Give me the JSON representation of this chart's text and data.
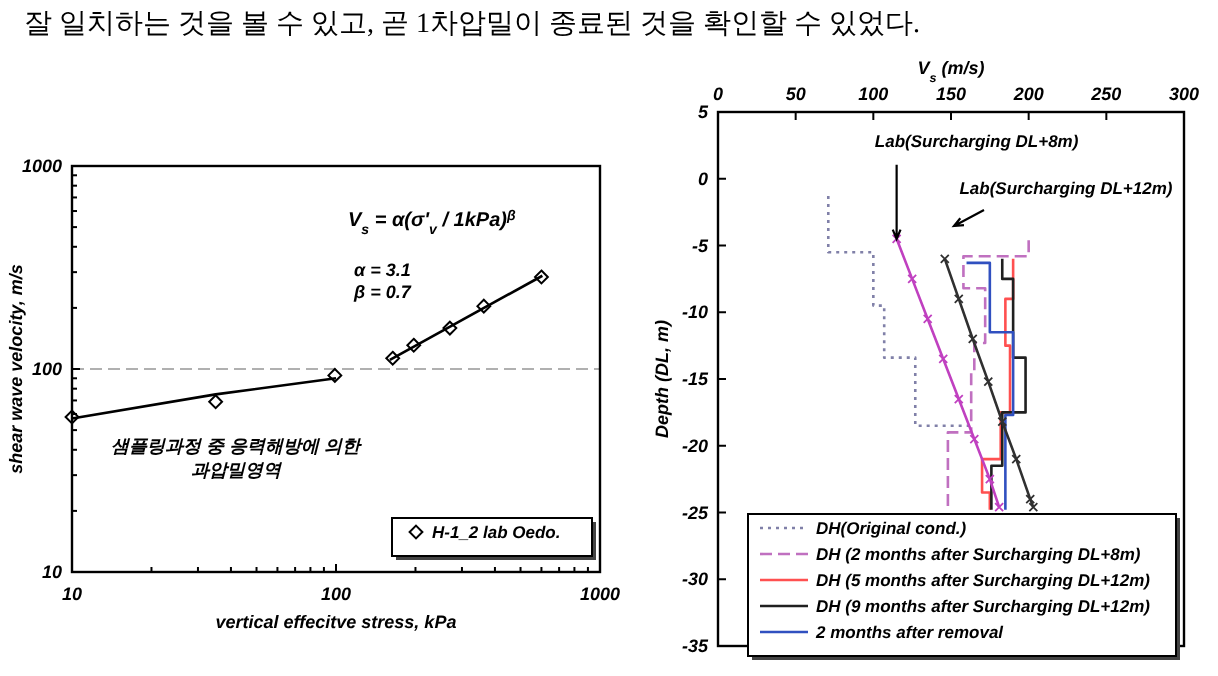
{
  "chart_data": [
    {
      "type": "scatter",
      "log": "xy",
      "xlabel": "vertical effecitve stress, kPa",
      "ylabel": "shear wave velocity, m/s",
      "xlim": [
        10,
        1000
      ],
      "ylim": [
        10,
        1000
      ],
      "xticks": [
        10,
        100,
        1000
      ],
      "yticks": [
        10,
        100,
        1000
      ],
      "marker": "diamond",
      "legend": "bottom right",
      "series": [
        {
          "name": "H-1_2 lab Oedo.",
          "color": "#000000",
          "x": [
            10,
            35,
            99,
            164,
            197,
            270,
            363,
            600
          ],
          "values": [
            58,
            69,
            93,
            113,
            131,
            159,
            204,
            284
          ]
        },
        {
          "type": "line",
          "marker": "none",
          "color": "#000000",
          "x": [
            10,
            35,
            100
          ],
          "values": [
            57,
            75,
            90
          ]
        },
        {
          "type": "line",
          "marker": "none",
          "color": "#000000",
          "x": [
            160,
            605
          ],
          "values": [
            111,
            288
          ]
        }
      ],
      "ref_lines": [
        {
          "axis": "y",
          "value": 100,
          "color": "#b0b0b0",
          "line_style": "dashed"
        }
      ],
      "annotations": [
        "잘 일치하는 것을 볼 수 있고, 곧 1차압밀이 종료된 것을 확인할 수 있었다.",
        "V$_{s}$ = α(σ'$_{v}$ / 1kPa)$^{β}$",
        "α = 3.1",
        "β = 0.7",
        "샘플링과정 중 응력해방에 의한\n과압밀영역"
      ]
    },
    {
      "type": "line",
      "xlabel": "V$_{s}$ (m/s)",
      "ylabel": "Depth (DL, m)",
      "xlim": [
        0,
        300
      ],
      "ylim": [
        -35,
        5
      ],
      "xticks": [
        0,
        50,
        100,
        150,
        200,
        250,
        300
      ],
      "yticks": [
        5,
        0,
        -5,
        -10,
        -15,
        -20,
        -25,
        -30,
        -35
      ],
      "legend": "bottom right",
      "series": [
        {
          "name": "DH(Original cond.)",
          "color": "#8080a8",
          "line_style": "dotted",
          "x": [
            71,
            71,
            100,
            100,
            107,
            107,
            127,
            127,
            163
          ],
          "values": [
            -1.3,
            -5.5,
            -5.5,
            -9.5,
            -9.5,
            -13.4,
            -13.4,
            -18.5,
            -18.5
          ]
        },
        {
          "name": "DH (2 months after Surcharging DL+8m)",
          "color": "#c070c0",
          "line_style": "dashed",
          "x": [
            200,
            200,
            158,
            158,
            172,
            172,
            165,
            165,
            163,
            163,
            148,
            148
          ],
          "values": [
            -4.6,
            -5.8,
            -5.8,
            -8.2,
            -8.2,
            -12.3,
            -12.3,
            -14.4,
            -14.4,
            -19,
            -19,
            -24.8
          ]
        },
        {
          "name": "DH (5 months after Surcharging DL+12m)",
          "color": "#ff5050",
          "line_style": "solid",
          "x": [
            190,
            190,
            185,
            185,
            188,
            188,
            182,
            182,
            170,
            170,
            175,
            175
          ],
          "values": [
            -6,
            -9,
            -9,
            -12.5,
            -12.5,
            -17.5,
            -17.5,
            -21,
            -21,
            -23.5,
            -23.5,
            -24.8
          ]
        },
        {
          "name": "DH (9 months after Surcharging DL+12m)",
          "color": "#202020",
          "line_style": "solid",
          "x": [
            183,
            183,
            190,
            190,
            198,
            198,
            183,
            183,
            176,
            176
          ],
          "values": [
            -6,
            -7.5,
            -7.5,
            -13.4,
            -13.4,
            -17.5,
            -17.5,
            -21.5,
            -21.5,
            -24.8
          ]
        },
        {
          "name": "2 months after removal",
          "color": "#3050c0",
          "line_style": "solid",
          "x": [
            160,
            175,
            175,
            190,
            190,
            185,
            185
          ],
          "values": [
            -6.3,
            -6.3,
            -11.5,
            -11.5,
            -17.7,
            -17.7,
            -24.8
          ]
        },
        {
          "color": "#c040c0",
          "line_style": "solid",
          "marker": "cross",
          "x": [
            115,
            125,
            135,
            145,
            155,
            165,
            175,
            181
          ],
          "values": [
            -4.5,
            -7.5,
            -10.5,
            -13.5,
            -16.5,
            -19.5,
            -22.5,
            -24.6
          ]
        },
        {
          "color": "#303030",
          "line_style": "solid",
          "marker": "cross",
          "x": [
            146,
            155,
            164,
            174,
            183,
            192,
            201,
            203
          ],
          "values": [
            -6,
            -9,
            -12,
            -15.2,
            -18.2,
            -21,
            -24,
            -24.6
          ]
        }
      ],
      "annotations": [
        {
          "text": "Lab(Surcharging DL+8m)",
          "x": 115,
          "y": -4.5
        },
        "Lab(Surcharging DL+12m)"
      ]
    }
  ]
}
